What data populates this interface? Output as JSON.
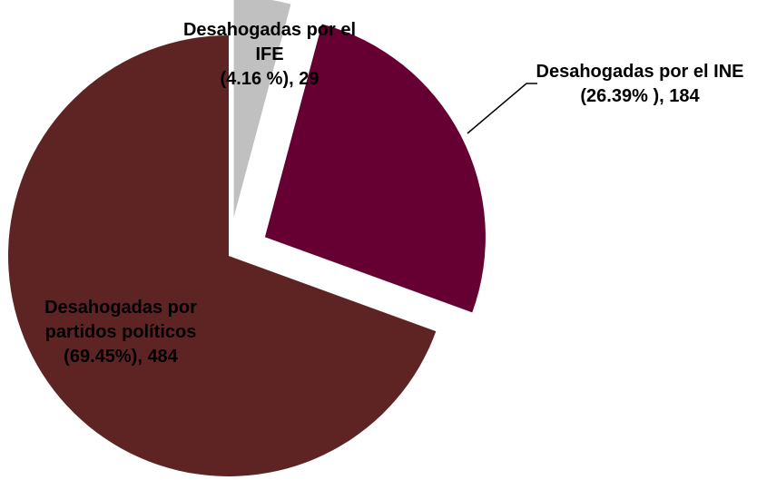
{
  "chart_data": {
    "type": "pie",
    "categories": [
      "Desahogadas por el IFE",
      "Desahogadas por el INE",
      "Desahogadas por partidos políticos"
    ],
    "values": [
      29,
      184,
      484
    ],
    "value_labels": [
      "(4.16 %), 29",
      "(26.39% ), 184",
      "(69.45%), 484"
    ],
    "colors": [
      "#c0c0c0",
      "#660033",
      "#5e2424"
    ]
  }
}
